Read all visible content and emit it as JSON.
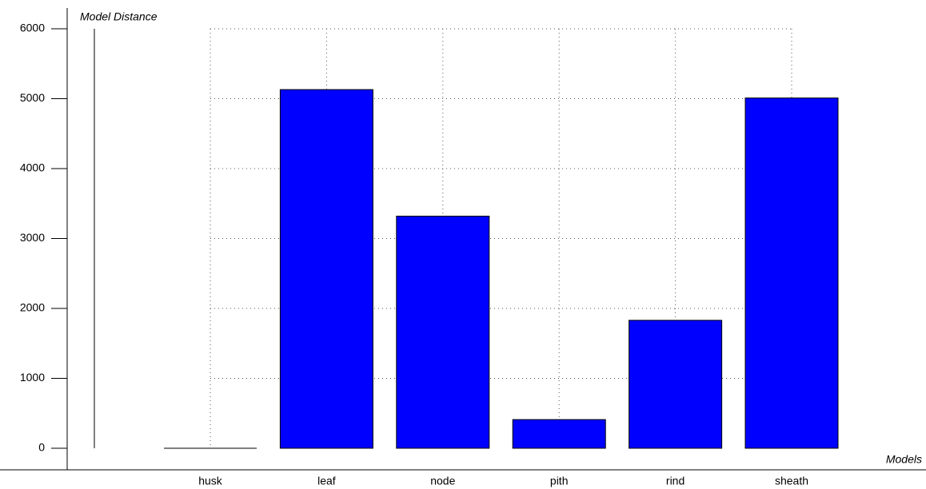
{
  "chart_data": {
    "type": "bar",
    "y_label": "Model Distance",
    "x_label": "Models",
    "categories": [
      "husk",
      "leaf",
      "node",
      "pith",
      "rind",
      "sheath"
    ],
    "values": [
      0,
      5130,
      3320,
      410,
      1830,
      5010
    ],
    "color": "#0000ff",
    "ylim": [
      0,
      6000
    ],
    "yticks": [
      0,
      1000,
      2000,
      3000,
      4000,
      5000,
      6000
    ],
    "grid": true
  }
}
